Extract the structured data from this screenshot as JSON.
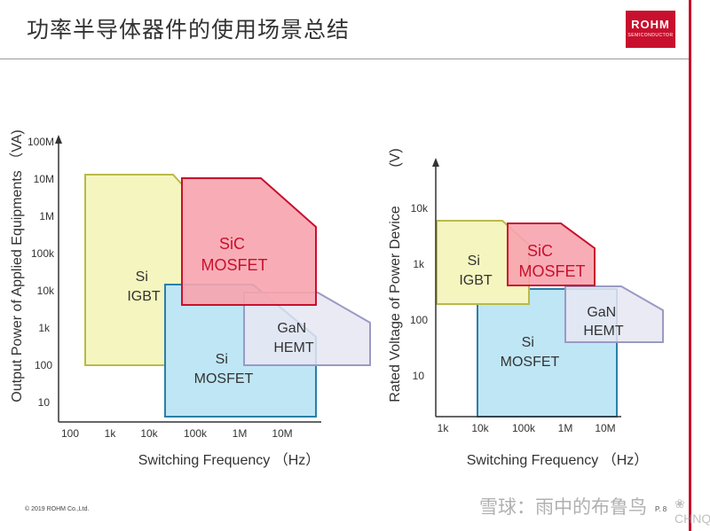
{
  "header": {
    "title": "功率半导体器件的使用场景总结",
    "logo_main": "ROHM",
    "logo_sub": "SEMICONDUCTOR"
  },
  "left_chart": {
    "y_axis_label": "Output Power of Applied Equipments （VA)",
    "x_axis_label": "Switching Frequency （Hz）",
    "y_ticks": [
      "100M",
      "10M",
      "1M",
      "100k",
      "10k",
      "1k",
      "100",
      "10"
    ],
    "x_ticks": [
      "100",
      "1k",
      "10k",
      "100k",
      "1M",
      "10M"
    ],
    "regions": [
      {
        "label_lines": [
          "Si",
          "IGBT"
        ],
        "color": "#f5f5bf",
        "border": "#b9b94a"
      },
      {
        "label_lines": [
          "Si",
          "MOSFET"
        ],
        "color": "#bfe6f5",
        "border": "#2a7fa8"
      },
      {
        "label_lines": [
          "GaN",
          "HEMT"
        ],
        "color": "#e6e6f2",
        "border": "#9a9ac4"
      },
      {
        "label_lines": [
          "SiC",
          "MOSFET"
        ],
        "color": "#f7a4ae",
        "border": "#c8102e"
      }
    ]
  },
  "right_chart": {
    "y_axis_label": "Rated Voltage of Power Device",
    "y_unit": "(V)",
    "x_axis_label": "Switching Frequency （Hz）",
    "y_ticks": [
      "10k",
      "1k",
      "100",
      "10"
    ],
    "x_ticks": [
      "1k",
      "10k",
      "100k",
      "1M",
      "10M"
    ],
    "regions": [
      {
        "label_lines": [
          "Si",
          "IGBT"
        ],
        "color": "#f5f5bf",
        "border": "#b9b94a"
      },
      {
        "label_lines": [
          "Si",
          "MOSFET"
        ],
        "color": "#bfe6f5",
        "border": "#2a7fa8"
      },
      {
        "label_lines": [
          "GaN",
          "HEMT"
        ],
        "color": "#e6e6f2",
        "border": "#9a9ac4"
      },
      {
        "label_lines": [
          "SiC",
          "MOSFET"
        ],
        "color": "#f7a4ae",
        "border": "#c8102e"
      }
    ]
  },
  "footer": {
    "copyright": "© 2019 ROHM Co.,Ltd.",
    "page": "P. 8",
    "watermark": "雪球：雨中的布鲁鸟",
    "watermark_logo": "❀ CHNQ"
  }
}
